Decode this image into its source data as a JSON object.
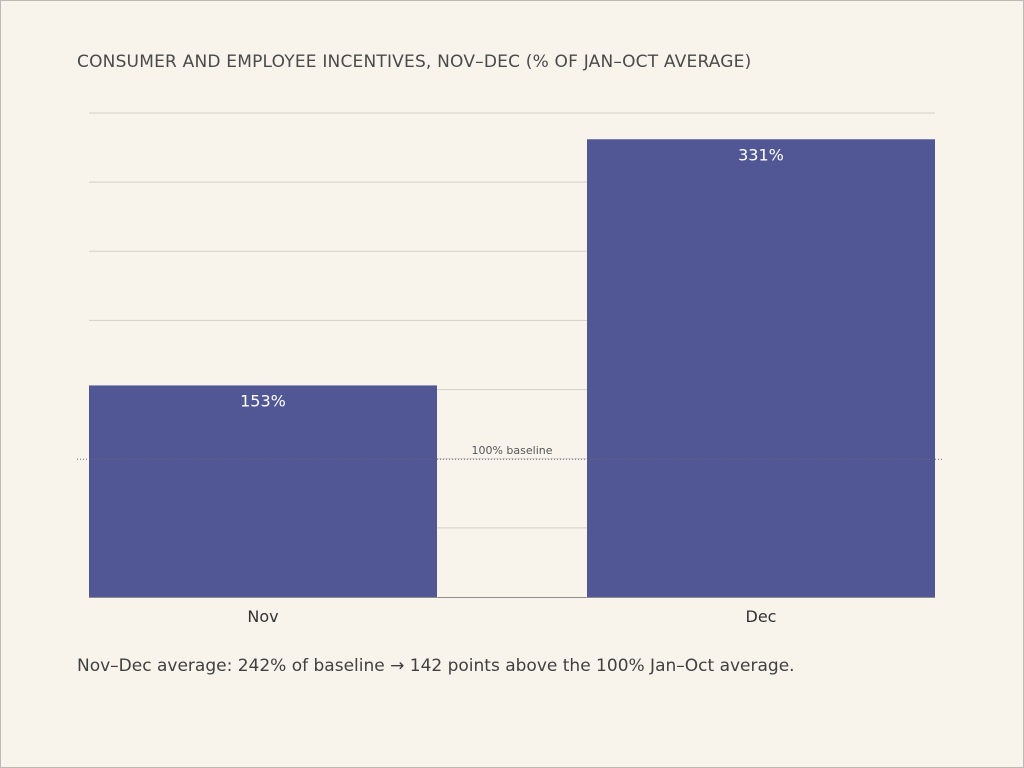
{
  "chart_data": {
    "type": "bar",
    "title": "CONSUMER AND EMPLOYEE INCENTIVES, NOV–DEC (% OF JAN–OCT AVERAGE)",
    "categories": [
      "Nov",
      "Dec"
    ],
    "values": [
      153,
      331
    ],
    "value_labels": [
      "153%",
      "331%"
    ],
    "ylim": [
      0,
      350
    ],
    "grid": true,
    "baseline": {
      "value": 100,
      "label": "100% baseline"
    },
    "bar_color": "#515794",
    "data_label_color": "#ffffff"
  },
  "footnote": "Nov–Dec average: 242% of baseline → 142 points above the 100% Jan–Oct average."
}
